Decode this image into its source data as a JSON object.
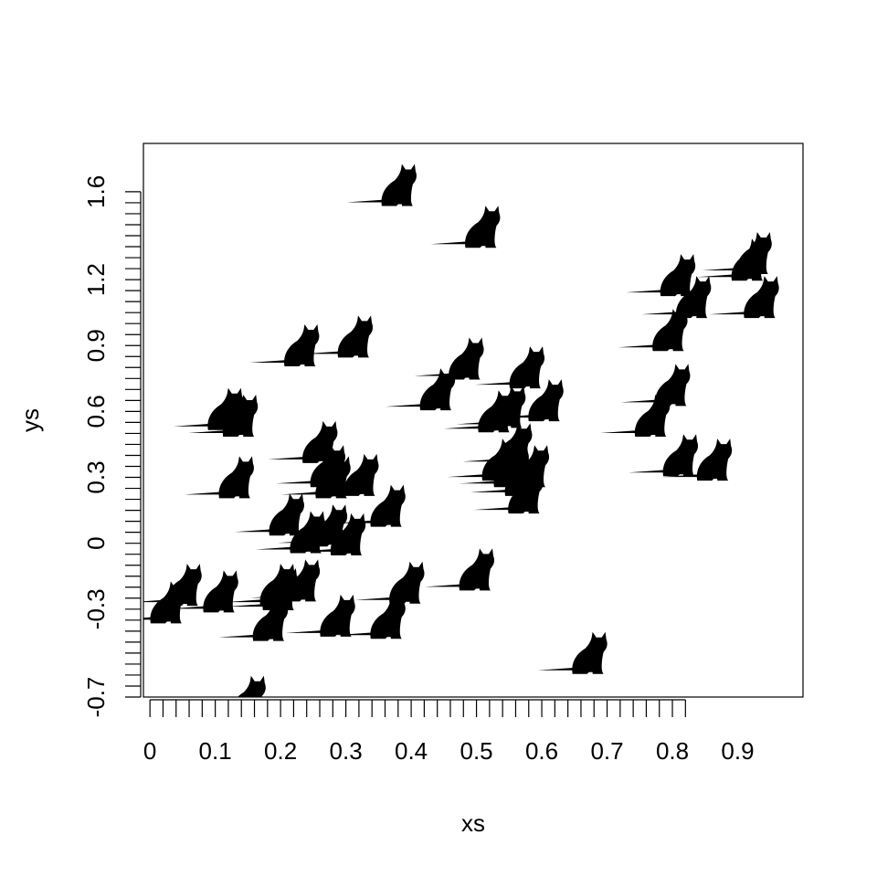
{
  "chart_data": {
    "type": "scatter",
    "marker": "cat-silhouette",
    "xlabel": "xs",
    "ylabel": "ys",
    "xlim": [
      -0.01,
      1.0
    ],
    "ylim": [
      -0.7,
      1.82
    ],
    "x_ticks": [
      0,
      0.1,
      0.2,
      0.3,
      0.4,
      0.5,
      0.6,
      0.7,
      0.8,
      0.9
    ],
    "x_tick_labels": [
      "0",
      "0.1",
      "0.2",
      "0.3",
      "0.4",
      "0.5",
      "0.6",
      "0.7",
      "0.8",
      "0.9"
    ],
    "x_minor_step": 0.02,
    "x_minor_range": [
      0.0,
      0.82
    ],
    "y_ticks": [
      -0.7,
      -0.3,
      0,
      0.3,
      0.6,
      0.9,
      1.2,
      1.6
    ],
    "y_tick_labels": [
      "-0.7",
      "-0.3",
      "0",
      "0.3",
      "0.6",
      "0.9",
      "1.2",
      "1.6"
    ],
    "y_minor_step": 0.05,
    "y_minor_range": [
      -0.7,
      1.6
    ],
    "grid": false,
    "legend": "none",
    "color": "#000000",
    "points": [
      {
        "x": 0.369,
        "y": 1.61
      },
      {
        "x": 0.497,
        "y": 1.42
      },
      {
        "x": 0.905,
        "y": 1.27
      },
      {
        "x": 0.913,
        "y": 1.3
      },
      {
        "x": 0.796,
        "y": 1.2
      },
      {
        "x": 0.82,
        "y": 1.1
      },
      {
        "x": 0.924,
        "y": 1.1
      },
      {
        "x": 0.784,
        "y": 0.95
      },
      {
        "x": 0.22,
        "y": 0.88
      },
      {
        "x": 0.302,
        "y": 0.92
      },
      {
        "x": 0.472,
        "y": 0.82
      },
      {
        "x": 0.565,
        "y": 0.78
      },
      {
        "x": 0.428,
        "y": 0.68
      },
      {
        "x": 0.594,
        "y": 0.63
      },
      {
        "x": 0.788,
        "y": 0.7
      },
      {
        "x": 0.757,
        "y": 0.56
      },
      {
        "x": 0.103,
        "y": 0.59
      },
      {
        "x": 0.126,
        "y": 0.56
      },
      {
        "x": 0.517,
        "y": 0.58
      },
      {
        "x": 0.536,
        "y": 0.6
      },
      {
        "x": 0.546,
        "y": 0.43
      },
      {
        "x": 0.248,
        "y": 0.44
      },
      {
        "x": 0.12,
        "y": 0.28
      },
      {
        "x": 0.26,
        "y": 0.33
      },
      {
        "x": 0.268,
        "y": 0.28
      },
      {
        "x": 0.311,
        "y": 0.29
      },
      {
        "x": 0.523,
        "y": 0.36
      },
      {
        "x": 0.541,
        "y": 0.33
      },
      {
        "x": 0.572,
        "y": 0.33
      },
      {
        "x": 0.558,
        "y": 0.29
      },
      {
        "x": 0.563,
        "y": 0.21
      },
      {
        "x": 0.8,
        "y": 0.38
      },
      {
        "x": 0.852,
        "y": 0.36
      },
      {
        "x": 0.197,
        "y": 0.11
      },
      {
        "x": 0.352,
        "y": 0.15
      },
      {
        "x": 0.229,
        "y": 0.03
      },
      {
        "x": 0.263,
        "y": 0.06
      },
      {
        "x": 0.291,
        "y": 0.02
      },
      {
        "x": 0.04,
        "y": -0.21
      },
      {
        "x": 0.015,
        "y": -0.29
      },
      {
        "x": 0.096,
        "y": -0.24
      },
      {
        "x": 0.183,
        "y": -0.21
      },
      {
        "x": 0.221,
        "y": -0.19
      },
      {
        "x": 0.187,
        "y": -0.23
      },
      {
        "x": 0.172,
        "y": -0.37
      },
      {
        "x": 0.275,
        "y": -0.35
      },
      {
        "x": 0.352,
        "y": -0.36
      },
      {
        "x": 0.381,
        "y": -0.2
      },
      {
        "x": 0.488,
        "y": -0.14
      },
      {
        "x": 0.661,
        "y": -0.52
      },
      {
        "x": 0.138,
        "y": -0.72
      }
    ]
  }
}
